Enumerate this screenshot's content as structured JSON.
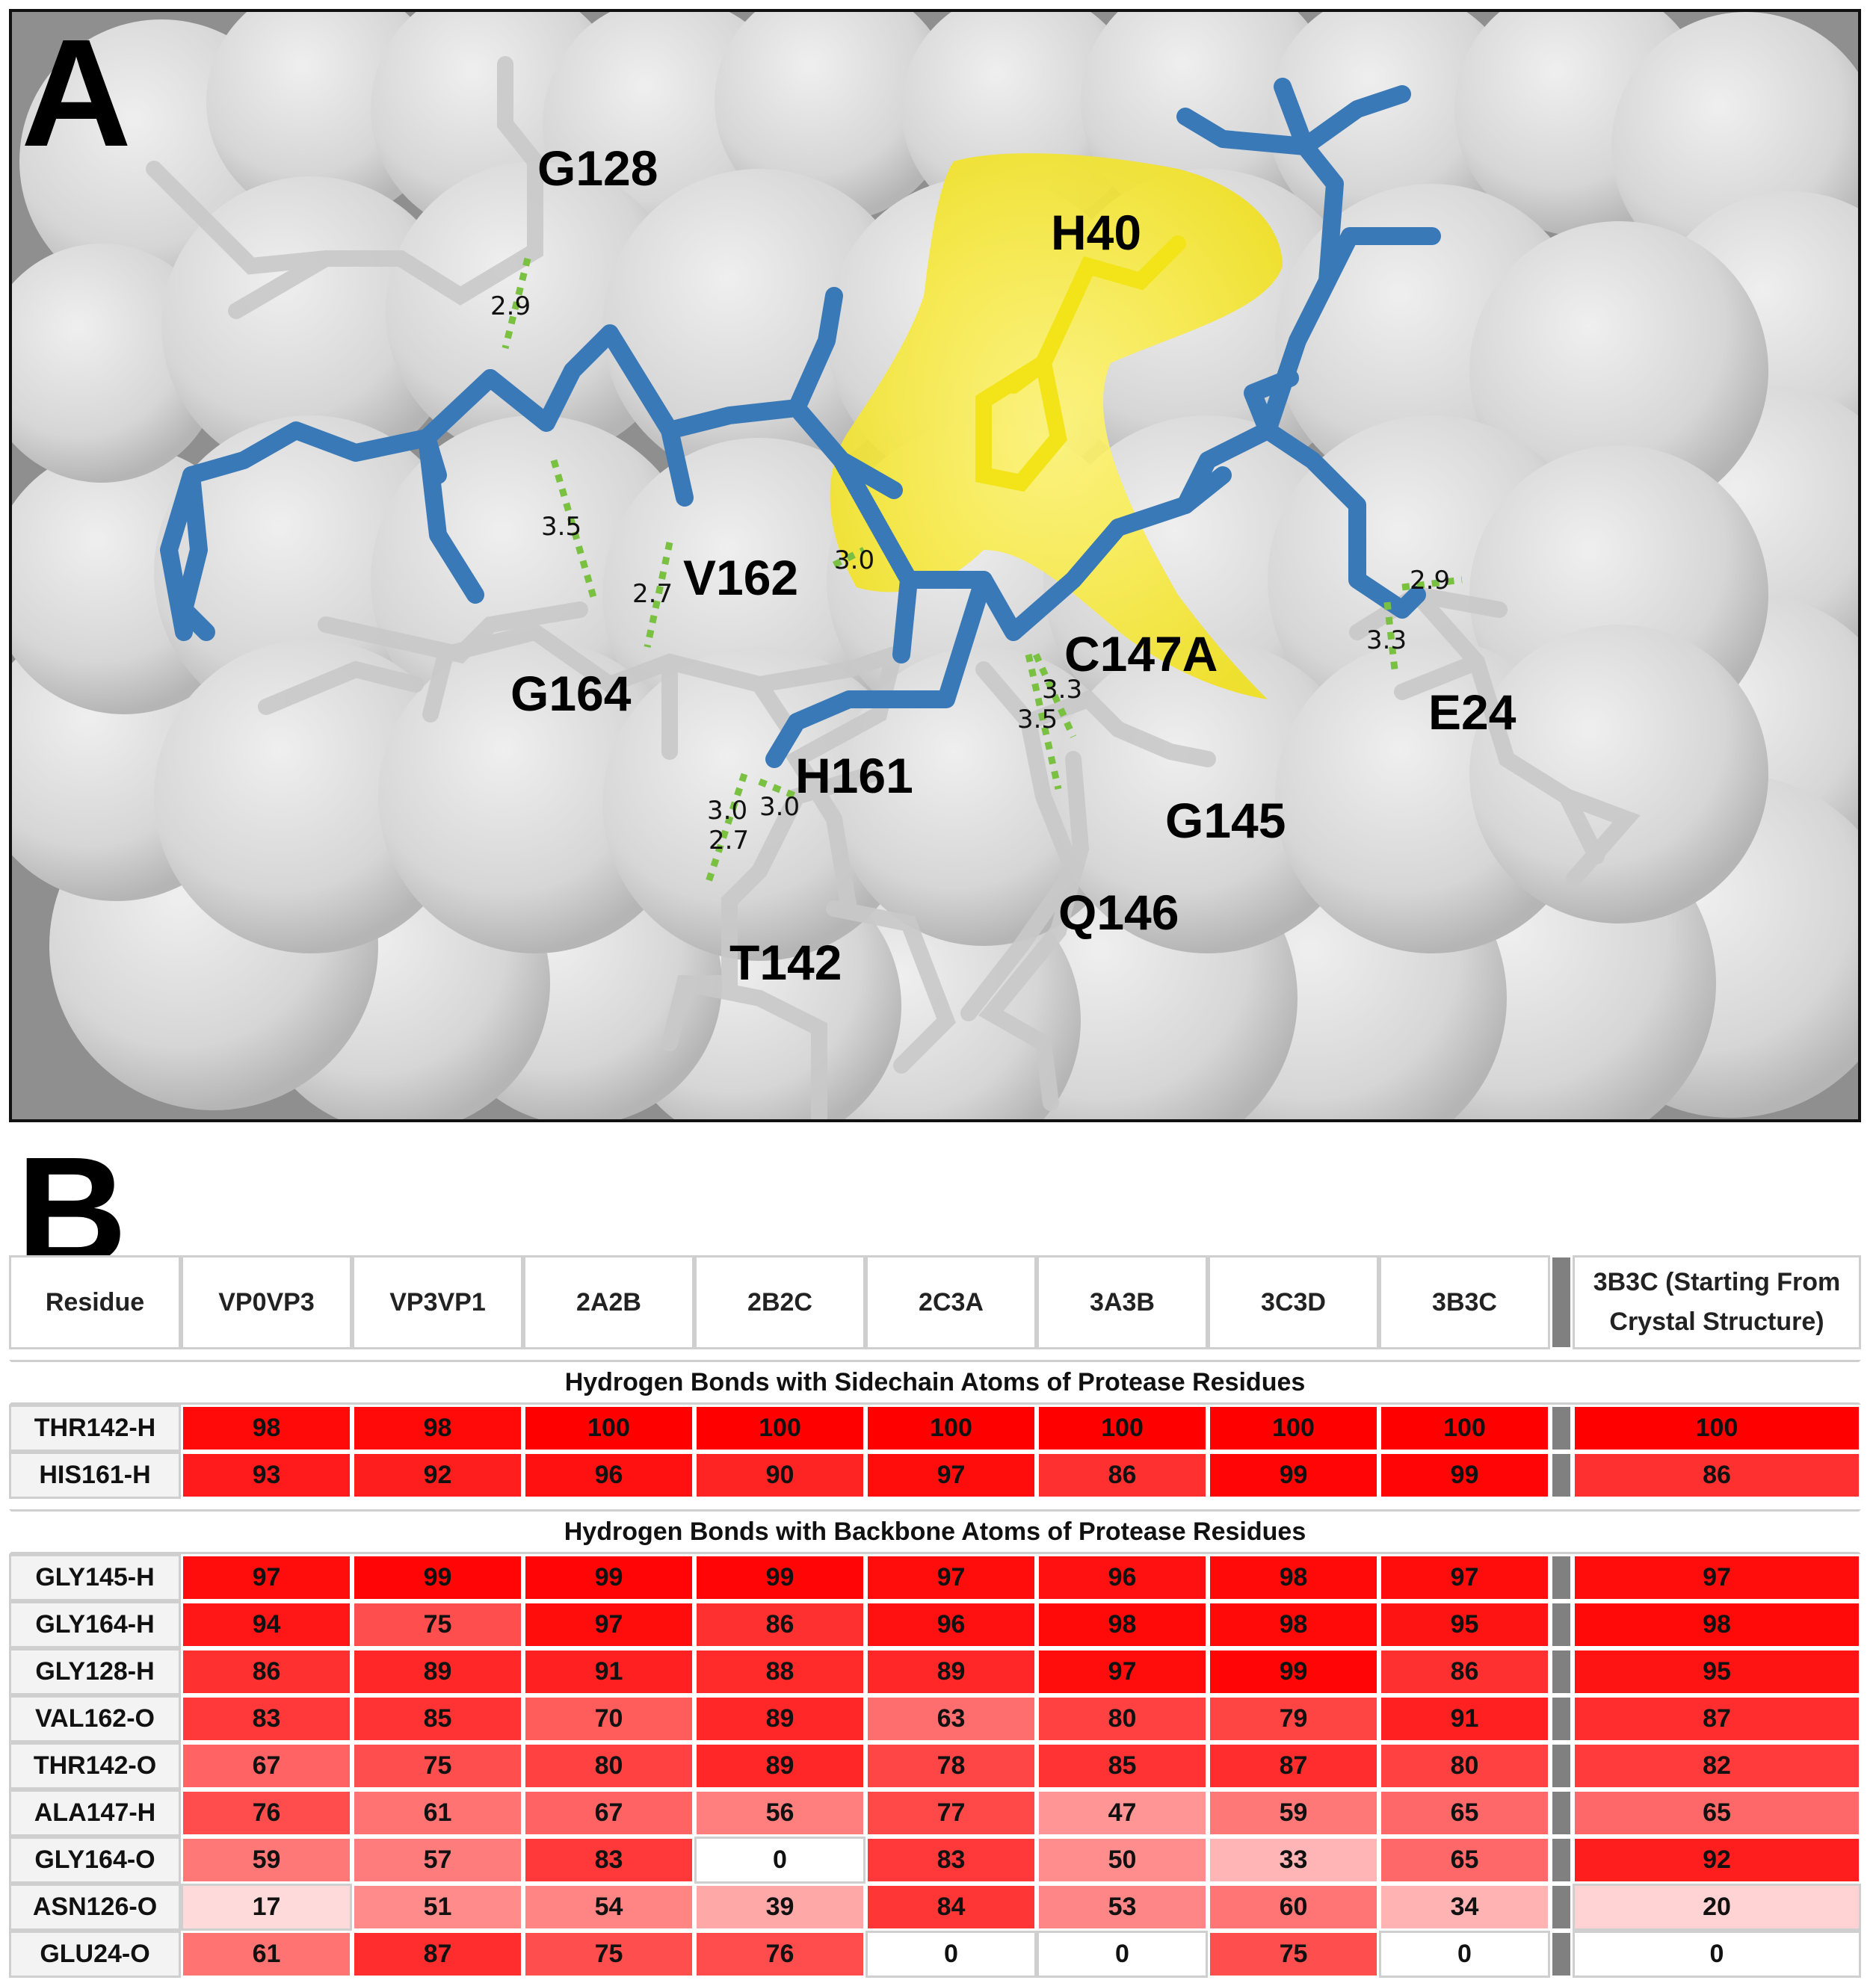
{
  "panel_a": {
    "letter": "A",
    "residue_labels": [
      "G128",
      "H40",
      "V162",
      "G164",
      "C147A",
      "E24",
      "H161",
      "G145",
      "Q146",
      "T142"
    ],
    "distance_labels": [
      "2.9",
      "3.5",
      "2.7",
      "3.0",
      "2.9",
      "3.3",
      "3.3",
      "3.5",
      "3.0",
      "3.0",
      "2.7"
    ],
    "colors": {
      "peptide": "#3a79b8",
      "protease_sticks": "#c8c8c8",
      "his40_surface": "#f5e93b",
      "hbond": "#7ac142",
      "oxygen": "#d2403a",
      "nitrogen": "#6f82c8"
    }
  },
  "panel_b": {
    "letter": "B",
    "headers": [
      "Residue",
      "VP0VP3",
      "VP3VP1",
      "2A2B",
      "2B2C",
      "2C3A",
      "3A3B",
      "3C3D",
      "3B3C",
      "3B3C (Starting From Crystal Structure)"
    ],
    "header_last_line1": "3B3C (Starting From",
    "header_last_line2": "Crystal Structure)",
    "sections": [
      {
        "title": "Hydrogen Bonds with Sidechain Atoms of Protease Residues",
        "rows": [
          {
            "residue": "THR142-H",
            "values": [
              98,
              98,
              100,
              100,
              100,
              100,
              100,
              100,
              100
            ]
          },
          {
            "residue": "HIS161-H",
            "values": [
              93,
              92,
              96,
              90,
              97,
              86,
              99,
              99,
              86
            ]
          }
        ]
      },
      {
        "title": "Hydrogen Bonds with Backbone Atoms of Protease Residues",
        "rows": [
          {
            "residue": "GLY145-H",
            "values": [
              97,
              99,
              99,
              99,
              97,
              96,
              98,
              97,
              97
            ]
          },
          {
            "residue": "GLY164-H",
            "values": [
              94,
              75,
              97,
              86,
              96,
              98,
              98,
              95,
              98
            ]
          },
          {
            "residue": "GLY128-H",
            "values": [
              86,
              89,
              91,
              88,
              89,
              97,
              99,
              86,
              95
            ]
          },
          {
            "residue": "VAL162-O",
            "values": [
              83,
              85,
              70,
              89,
              63,
              80,
              79,
              91,
              87
            ]
          },
          {
            "residue": "THR142-O",
            "values": [
              67,
              75,
              80,
              89,
              78,
              85,
              87,
              80,
              82
            ]
          },
          {
            "residue": "ALA147-H",
            "values": [
              76,
              61,
              67,
              56,
              77,
              47,
              59,
              65,
              65
            ]
          },
          {
            "residue": "GLY164-O",
            "values": [
              59,
              57,
              83,
              0,
              83,
              50,
              33,
              65,
              92
            ]
          },
          {
            "residue": "ASN126-O",
            "values": [
              17,
              51,
              54,
              39,
              84,
              53,
              60,
              34,
              20
            ]
          },
          {
            "residue": "GLU24-O",
            "values": [
              61,
              87,
              75,
              76,
              0,
              0,
              75,
              0,
              0
            ]
          }
        ]
      }
    ],
    "heat_colors": {
      "low": "#ffffff",
      "high": "#ff0000"
    }
  }
}
